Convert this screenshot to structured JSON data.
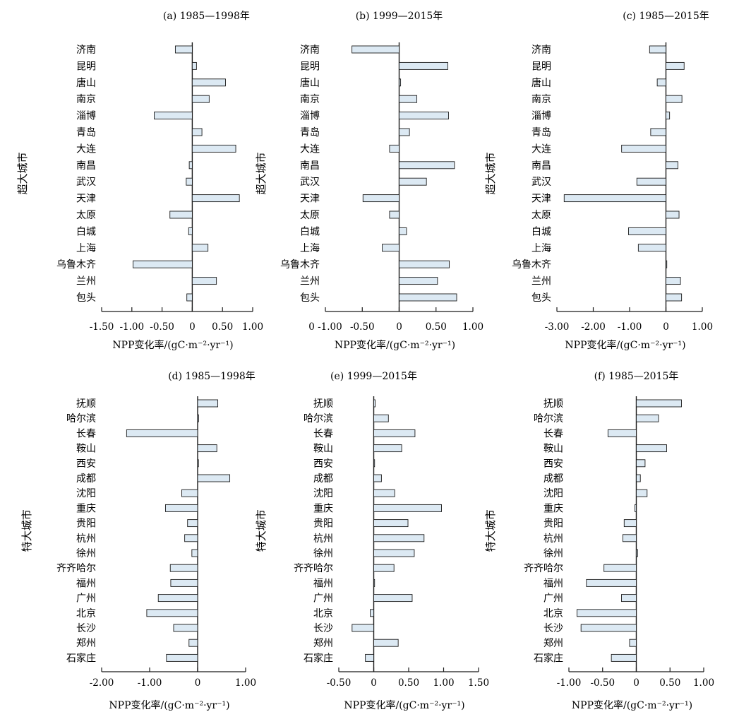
{
  "figure": {
    "panels": [
      {
        "group": "超大城市",
        "col": 0,
        "row": 0
      },
      {
        "group": "超大城市",
        "col": 1,
        "row": 0
      },
      {
        "group": "超大城市",
        "col": 2,
        "row": 0
      },
      {
        "group": "特大城市",
        "col": 0,
        "row": 1
      },
      {
        "group": "特大城市",
        "col": 1,
        "row": 1
      },
      {
        "group": "特大城市",
        "col": 2,
        "row": 1
      }
    ]
  },
  "colors": {
    "bar_fill": "#dce9f3",
    "bar_stroke": "#1a1a1a",
    "axis": "#1a1a1a"
  },
  "chart_data": [
    {
      "type": "bar",
      "orientation": "horizontal",
      "title": "(a) 1985—1998年",
      "ylabel": "超大城市",
      "xlabel": "NPP变化率/(gC·m⁻²·yr⁻¹)",
      "xlim": [
        -1.5,
        1.0
      ],
      "xticks": [
        -1.5,
        -1.0,
        -0.5,
        0,
        0.5,
        1.0
      ],
      "xtick_labels": [
        "-1.50",
        "-1.00",
        "-0.50",
        "0",
        "0.50",
        "1.00"
      ],
      "categories": [
        "济南",
        "昆明",
        "唐山",
        "南京",
        "淄博",
        "青岛",
        "大连",
        "南昌",
        "武汉",
        "天津",
        "太原",
        "白城",
        "上海",
        "乌鲁木齐",
        "兰州",
        "包头"
      ],
      "values": [
        -0.28,
        0.07,
        0.55,
        0.28,
        -0.63,
        0.16,
        0.72,
        -0.05,
        -0.1,
        0.78,
        -0.37,
        -0.06,
        0.26,
        -0.98,
        0.4,
        -0.09
      ]
    },
    {
      "type": "bar",
      "orientation": "horizontal",
      "title": "(b) 1999—2015年",
      "ylabel": "超大城市",
      "xlabel": "NPP变化率/(gC·m⁻²·yr⁻¹)",
      "xlim": [
        -1.0,
        1.0
      ],
      "xticks": [
        -1.0,
        -0.5,
        0,
        0.5,
        1.0
      ],
      "xtick_labels": [
        "0 -1.00",
        "-0.50",
        "0",
        "0.50",
        "1.00"
      ],
      "categories": [
        "济南",
        "昆明",
        "唐山",
        "南京",
        "淄博",
        "青岛",
        "大连",
        "南昌",
        "武汉",
        "天津",
        "太原",
        "白城",
        "上海",
        "乌鲁木齐",
        "兰州",
        "包头"
      ],
      "values": [
        -0.64,
        0.66,
        0.02,
        0.24,
        0.67,
        0.14,
        -0.13,
        0.75,
        0.37,
        -0.49,
        -0.13,
        0.1,
        -0.23,
        0.68,
        0.52,
        0.78
      ]
    },
    {
      "type": "bar",
      "orientation": "horizontal",
      "title": "(c) 1985—2015年",
      "ylabel": "超大城市",
      "xlabel": "NPP变化率/(gC·m⁻²·yr⁻¹)",
      "xlim": [
        -3.0,
        1.0
      ],
      "xticks": [
        -3.0,
        -2.0,
        -1.0,
        0,
        1.0
      ],
      "xtick_labels": [
        "-3.00",
        "-2.00",
        "-1.00",
        "0",
        "1.00"
      ],
      "categories": [
        "济南",
        "昆明",
        "唐山",
        "南京",
        "淄博",
        "青岛",
        "大连",
        "南昌",
        "武汉",
        "天津",
        "太原",
        "白城",
        "上海",
        "乌鲁木齐",
        "兰州",
        "包头"
      ],
      "values": [
        -0.45,
        0.5,
        -0.24,
        0.44,
        0.1,
        -0.42,
        -1.22,
        0.33,
        -0.8,
        -2.8,
        0.36,
        -1.03,
        -0.76,
        0.0,
        0.4,
        0.43
      ]
    },
    {
      "type": "bar",
      "orientation": "horizontal",
      "title": "(d) 1985—1998年",
      "ylabel": "特大城市",
      "xlabel": "NPP变化率/(gC·m⁻²·yr⁻¹)",
      "xlim": [
        -2.0,
        1.0
      ],
      "xticks": [
        -2.0,
        -1.0,
        0,
        1.0
      ],
      "xtick_labels": [
        "-2.00",
        "-1.00",
        "0",
        "1.00"
      ],
      "categories": [
        "抚顺",
        "哈尔滨",
        "长春",
        "鞍山",
        "西安",
        "成都",
        "沈阳",
        "重庆",
        "贵阳",
        "杭州",
        "徐州",
        "齐齐哈尔",
        "福州",
        "广州",
        "北京",
        "长沙",
        "郑州",
        "石家庄"
      ],
      "values": [
        0.42,
        0.02,
        -1.48,
        0.4,
        0.0,
        0.67,
        -0.33,
        -0.67,
        -0.21,
        -0.27,
        -0.12,
        -0.57,
        -0.56,
        -0.82,
        -1.06,
        -0.5,
        -0.18,
        -0.65
      ]
    },
    {
      "type": "bar",
      "orientation": "horizontal",
      "title": "(e) 1999—2015年",
      "ylabel": "特大城市",
      "xlabel": "NPP变化率/(gC·m⁻²·yr⁻¹)",
      "xlim": [
        -0.5,
        1.5
      ],
      "xticks": [
        -0.5,
        0,
        0.5,
        1.0,
        1.5
      ],
      "xtick_labels": [
        "-0.50",
        "0",
        "0.50",
        "1.00",
        "1.50"
      ],
      "categories": [
        "抚顺",
        "哈尔滨",
        "长春",
        "鞍山",
        "西安",
        "成都",
        "沈阳",
        "重庆",
        "贵阳",
        "杭州",
        "徐州",
        "齐齐哈尔",
        "福州",
        "广州",
        "北京",
        "长沙",
        "郑州",
        "石家庄"
      ],
      "values": [
        0.02,
        0.21,
        0.59,
        0.4,
        0.0,
        0.11,
        0.3,
        0.97,
        0.49,
        0.72,
        0.58,
        0.29,
        0.01,
        0.55,
        -0.05,
        -0.31,
        0.35,
        -0.12
      ]
    },
    {
      "type": "bar",
      "orientation": "horizontal",
      "title": "(f) 1985—2015年",
      "ylabel": "特大城市",
      "xlabel": "NPP变化率/(gC·m⁻²·yr⁻¹)",
      "xlim": [
        -1.0,
        1.0
      ],
      "xticks": [
        -1.0,
        -0.5,
        0,
        0.5,
        1.0
      ],
      "xtick_labels": [
        "-1.00",
        "-0.50",
        "0",
        "0.50",
        "1.00"
      ],
      "categories": [
        "抚顺",
        "哈尔滨",
        "长春",
        "鞍山",
        "西安",
        "成都",
        "沈阳",
        "重庆",
        "贵阳",
        "杭州",
        "徐州",
        "齐齐哈尔",
        "福州",
        "广州",
        "北京",
        "长沙",
        "郑州",
        "石家庄"
      ],
      "values": [
        0.67,
        0.33,
        -0.42,
        0.45,
        0.13,
        0.06,
        0.16,
        -0.02,
        -0.18,
        -0.2,
        0.02,
        -0.48,
        -0.74,
        -0.22,
        -0.88,
        -0.82,
        -0.1,
        -0.37
      ]
    }
  ]
}
